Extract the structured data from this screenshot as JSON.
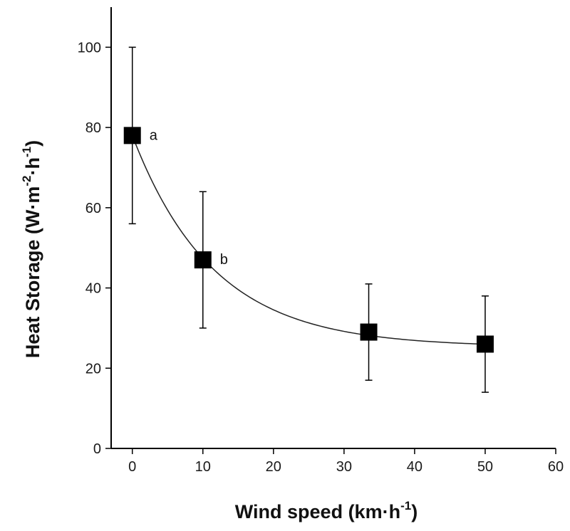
{
  "chart_data": {
    "type": "scatter",
    "title": "",
    "xlabel": "Wind speed (km·h",
    "xlabel_sup": "-1",
    "xlabel_close": ")",
    "ylabel": "Heat Storage (W·m",
    "ylabel_sup1": "-2",
    "ylabel_mid": "·h",
    "ylabel_sup2": "-1",
    "ylabel_close": ")",
    "xlim": [
      -3,
      60
    ],
    "ylim": [
      0,
      110
    ],
    "xticks": [
      0,
      10,
      20,
      30,
      40,
      50,
      60
    ],
    "yticks": [
      0,
      20,
      40,
      60,
      80,
      100
    ],
    "grid": false,
    "series": [
      {
        "name": "Heat Storage",
        "x": [
          0,
          10,
          33.5,
          50
        ],
        "y": [
          78,
          47,
          29,
          26
        ],
        "err_low": [
          56,
          30,
          17,
          14
        ],
        "err_high": [
          100,
          64,
          41,
          38
        ],
        "labels": [
          "a",
          "b",
          "",
          ""
        ],
        "marker": "square",
        "color": "#000000"
      }
    ],
    "fit_curve": {
      "type": "exponential_decay",
      "y0": 25.3,
      "amplitude": 52.7,
      "rate": 0.087
    }
  }
}
